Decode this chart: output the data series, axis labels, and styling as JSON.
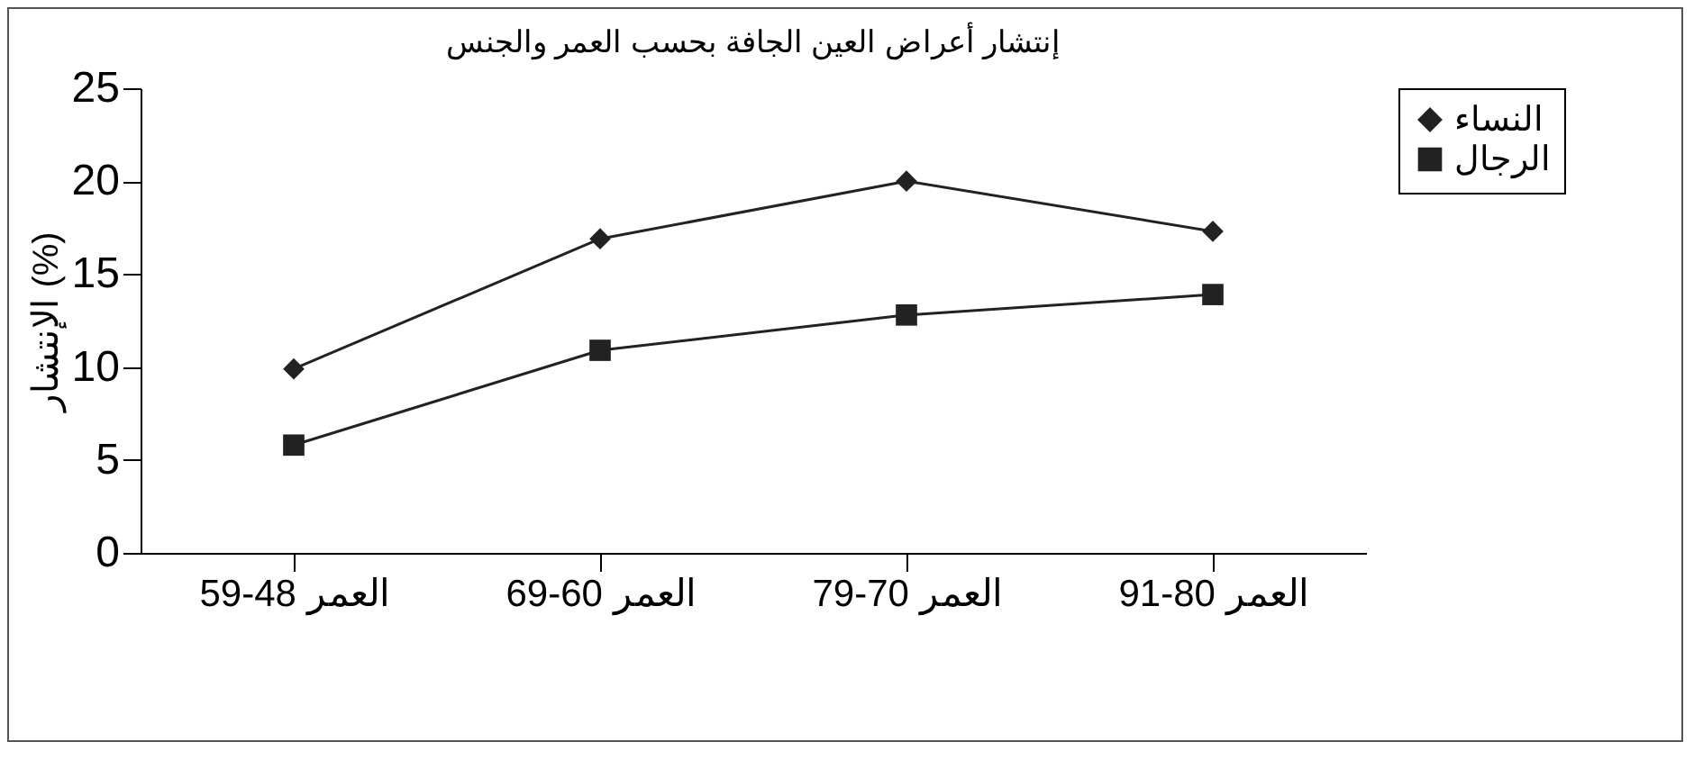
{
  "chart_data": {
    "type": "line",
    "title": "إنتشار أعراض العين الجافة بحسب العمر والجنس",
    "ylabel": "الإنتشار (%)",
    "categories": [
      "العمر 48-59",
      "العمر 60-69",
      "العمر 70-79",
      "العمر 80-91"
    ],
    "series": [
      {
        "name": "النساء",
        "color": "#222222",
        "marker": "diamond",
        "values": [
          9.9,
          16.9,
          20,
          17.3
        ]
      },
      {
        "name": "الرجال",
        "color": "#222222",
        "marker": "square",
        "values": [
          5.8,
          10.9,
          12.8,
          13.9
        ]
      }
    ],
    "ylim": [
      0,
      25
    ],
    "yticks": [
      0,
      5,
      10,
      15,
      20,
      25
    ],
    "grid": false,
    "legend": "right",
    "line_style": "solid"
  }
}
